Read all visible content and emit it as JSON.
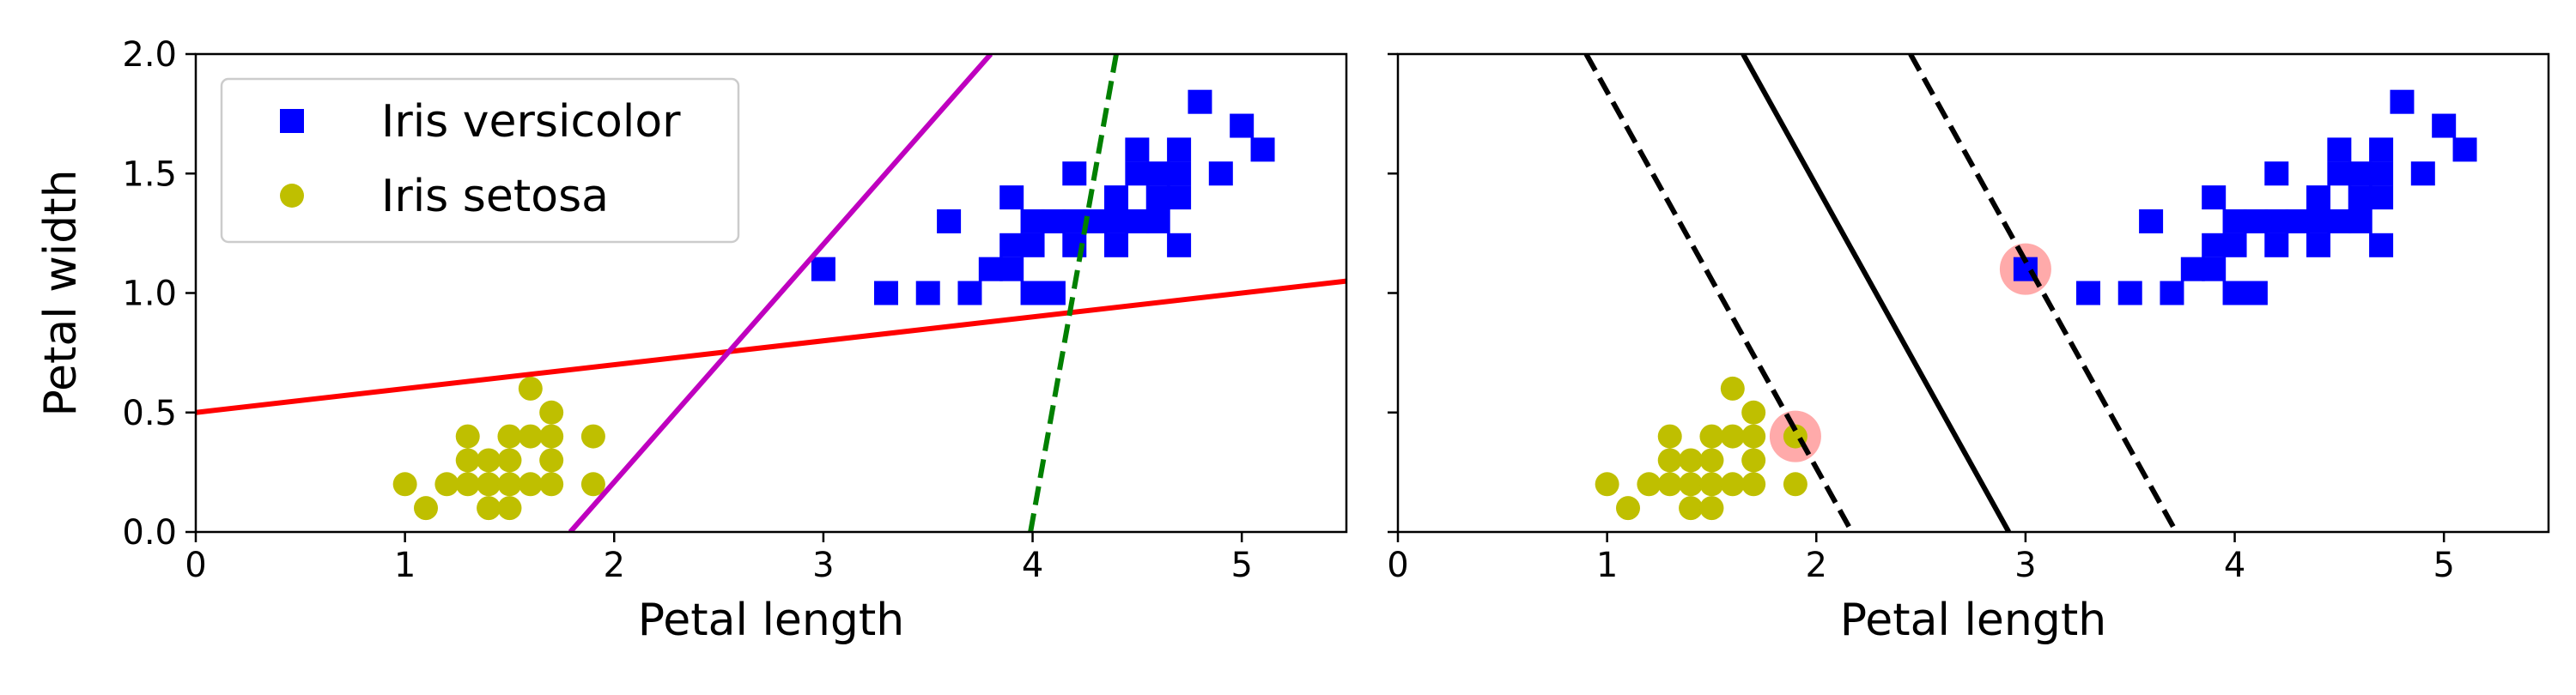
{
  "chart_data": [
    {
      "type": "scatter",
      "xlabel": "Petal length",
      "ylabel": "Petal width",
      "xlim": [
        0,
        5.5
      ],
      "ylim": [
        0,
        2.0
      ],
      "xticks": [
        "0",
        "1",
        "2",
        "3",
        "4",
        "5"
      ],
      "yticks": [
        "0.0",
        "0.5",
        "1.0",
        "1.5",
        "2.0"
      ],
      "grid": false,
      "legend": {
        "placement": "upper-left",
        "entries": [
          "Iris versicolor",
          "Iris setosa"
        ]
      },
      "series": [
        {
          "name": "Iris versicolor",
          "marker": "square",
          "color": "#0000ff",
          "points": [
            [
              3.0,
              1.1
            ],
            [
              3.3,
              1.0
            ],
            [
              3.5,
              1.0
            ],
            [
              3.6,
              1.3
            ],
            [
              3.7,
              1.0
            ],
            [
              3.8,
              1.1
            ],
            [
              3.9,
              1.1
            ],
            [
              3.9,
              1.2
            ],
            [
              3.9,
              1.4
            ],
            [
              4.0,
              1.0
            ],
            [
              4.0,
              1.2
            ],
            [
              4.0,
              1.3
            ],
            [
              4.1,
              1.0
            ],
            [
              4.1,
              1.3
            ],
            [
              4.2,
              1.2
            ],
            [
              4.2,
              1.3
            ],
            [
              4.2,
              1.5
            ],
            [
              4.3,
              1.3
            ],
            [
              4.4,
              1.2
            ],
            [
              4.4,
              1.3
            ],
            [
              4.4,
              1.4
            ],
            [
              4.5,
              1.3
            ],
            [
              4.5,
              1.5
            ],
            [
              4.5,
              1.6
            ],
            [
              4.6,
              1.3
            ],
            [
              4.6,
              1.4
            ],
            [
              4.6,
              1.5
            ],
            [
              4.7,
              1.2
            ],
            [
              4.7,
              1.4
            ],
            [
              4.7,
              1.5
            ],
            [
              4.7,
              1.6
            ],
            [
              4.8,
              1.8
            ],
            [
              4.9,
              1.5
            ],
            [
              5.0,
              1.7
            ],
            [
              5.1,
              1.6
            ]
          ]
        },
        {
          "name": "Iris setosa",
          "marker": "circle",
          "color": "#bfbf00",
          "points": [
            [
              1.0,
              0.2
            ],
            [
              1.1,
              0.1
            ],
            [
              1.2,
              0.2
            ],
            [
              1.3,
              0.2
            ],
            [
              1.3,
              0.3
            ],
            [
              1.3,
              0.4
            ],
            [
              1.4,
              0.1
            ],
            [
              1.4,
              0.2
            ],
            [
              1.4,
              0.3
            ],
            [
              1.5,
              0.1
            ],
            [
              1.5,
              0.2
            ],
            [
              1.5,
              0.3
            ],
            [
              1.5,
              0.4
            ],
            [
              1.6,
              0.2
            ],
            [
              1.6,
              0.4
            ],
            [
              1.6,
              0.6
            ],
            [
              1.7,
              0.2
            ],
            [
              1.7,
              0.3
            ],
            [
              1.7,
              0.4
            ],
            [
              1.7,
              0.5
            ],
            [
              1.9,
              0.2
            ],
            [
              1.9,
              0.4
            ]
          ]
        }
      ],
      "lines": [
        {
          "color": "#ff0000",
          "style": "solid",
          "x": [
            0,
            5.5
          ],
          "y": [
            0.5,
            1.05
          ]
        },
        {
          "color": "#bf00bf",
          "style": "solid",
          "x": [
            1.79,
            3.8
          ],
          "y": [
            0,
            2.0
          ]
        },
        {
          "color": "#008000",
          "style": "dashed",
          "x": [
            3.99,
            4.4
          ],
          "y": [
            0,
            2.0
          ]
        }
      ]
    },
    {
      "type": "scatter",
      "xlabel": "Petal length",
      "ylabel": "",
      "xlim": [
        0,
        5.5
      ],
      "ylim": [
        0,
        2.0
      ],
      "xticks": [
        "0",
        "1",
        "2",
        "3",
        "4",
        "5"
      ],
      "yticks": [],
      "grid": false,
      "series": [
        {
          "name": "Iris versicolor",
          "marker": "square",
          "color": "#0000ff",
          "points": [
            [
              3.0,
              1.1
            ],
            [
              3.3,
              1.0
            ],
            [
              3.5,
              1.0
            ],
            [
              3.6,
              1.3
            ],
            [
              3.7,
              1.0
            ],
            [
              3.8,
              1.1
            ],
            [
              3.9,
              1.1
            ],
            [
              3.9,
              1.2
            ],
            [
              3.9,
              1.4
            ],
            [
              4.0,
              1.0
            ],
            [
              4.0,
              1.2
            ],
            [
              4.0,
              1.3
            ],
            [
              4.1,
              1.0
            ],
            [
              4.1,
              1.3
            ],
            [
              4.2,
              1.2
            ],
            [
              4.2,
              1.3
            ],
            [
              4.2,
              1.5
            ],
            [
              4.3,
              1.3
            ],
            [
              4.4,
              1.2
            ],
            [
              4.4,
              1.3
            ],
            [
              4.4,
              1.4
            ],
            [
              4.5,
              1.3
            ],
            [
              4.5,
              1.5
            ],
            [
              4.5,
              1.6
            ],
            [
              4.6,
              1.3
            ],
            [
              4.6,
              1.4
            ],
            [
              4.6,
              1.5
            ],
            [
              4.7,
              1.2
            ],
            [
              4.7,
              1.4
            ],
            [
              4.7,
              1.5
            ],
            [
              4.7,
              1.6
            ],
            [
              4.8,
              1.8
            ],
            [
              4.9,
              1.5
            ],
            [
              5.0,
              1.7
            ],
            [
              5.1,
              1.6
            ]
          ]
        },
        {
          "name": "Iris setosa",
          "marker": "circle",
          "color": "#bfbf00",
          "points": [
            [
              1.0,
              0.2
            ],
            [
              1.1,
              0.1
            ],
            [
              1.2,
              0.2
            ],
            [
              1.3,
              0.2
            ],
            [
              1.3,
              0.3
            ],
            [
              1.3,
              0.4
            ],
            [
              1.4,
              0.1
            ],
            [
              1.4,
              0.2
            ],
            [
              1.4,
              0.3
            ],
            [
              1.5,
              0.1
            ],
            [
              1.5,
              0.2
            ],
            [
              1.5,
              0.3
            ],
            [
              1.5,
              0.4
            ],
            [
              1.6,
              0.2
            ],
            [
              1.6,
              0.4
            ],
            [
              1.6,
              0.6
            ],
            [
              1.7,
              0.2
            ],
            [
              1.7,
              0.3
            ],
            [
              1.7,
              0.4
            ],
            [
              1.7,
              0.5
            ],
            [
              1.9,
              0.2
            ],
            [
              1.9,
              0.4
            ]
          ]
        }
      ],
      "lines": [
        {
          "color": "#000000",
          "style": "solid",
          "x": [
            1.65,
            2.92
          ],
          "y": [
            2.0,
            0
          ]
        },
        {
          "color": "#000000",
          "style": "dashed",
          "x": [
            0.9,
            2.17
          ],
          "y": [
            2.0,
            0
          ]
        },
        {
          "color": "#000000",
          "style": "dashed",
          "x": [
            2.45,
            3.72
          ],
          "y": [
            2.0,
            0
          ]
        }
      ],
      "support_vectors": {
        "color": "#ffaaaa",
        "points": [
          [
            1.9,
            0.4
          ],
          [
            3.0,
            1.1
          ]
        ]
      }
    }
  ]
}
